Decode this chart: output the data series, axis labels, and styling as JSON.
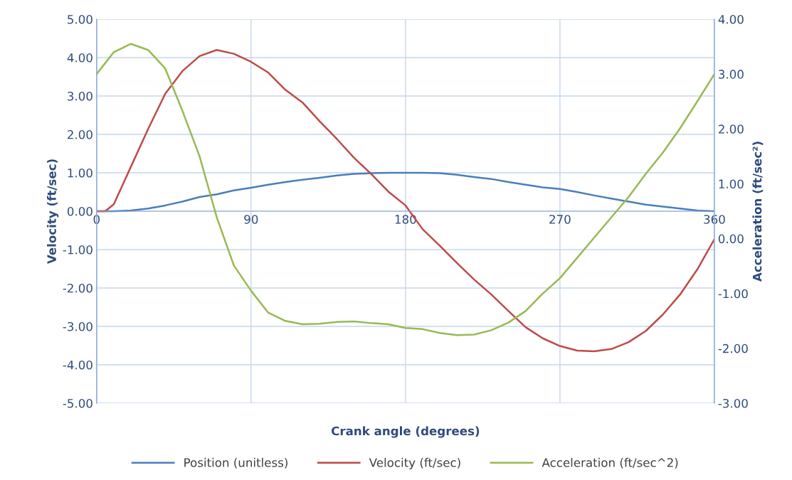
{
  "chart_data": {
    "type": "line",
    "xlabel": "Crank angle (degrees)",
    "ylabel": "Velocity (ft/sec)",
    "y2label": "Acceleration (ft/sec²)",
    "x": [
      0,
      10,
      20,
      30,
      40,
      50,
      60,
      70,
      80,
      90,
      100,
      110,
      120,
      130,
      140,
      150,
      160,
      170,
      180,
      190,
      200,
      210,
      220,
      230,
      240,
      250,
      260,
      270,
      280,
      290,
      300,
      310,
      320,
      330,
      340,
      350,
      360
    ],
    "series": [
      {
        "name": "Position (unitless)",
        "color": "#4a7ebb",
        "values": [
          0,
          0,
          0.02,
          0.07,
          0.15,
          0.25,
          0.37,
          0.44,
          0.54,
          0.61,
          0.69,
          0.76,
          0.82,
          0.87,
          0.93,
          0.97,
          0.99,
          1.0,
          1.0,
          1.0,
          0.99,
          0.95,
          0.89,
          0.84,
          0.76,
          0.69,
          0.62,
          0.58,
          0.5,
          0.41,
          0.33,
          0.25,
          0.17,
          0.12,
          0.07,
          0.02,
          0
        ]
      },
      {
        "name": "Velocity (ft/sec)",
        "color": "#be4b48",
        "x": [
          0,
          5,
          10,
          20,
          30,
          40,
          50,
          60,
          70,
          80,
          90,
          100,
          110,
          120,
          130,
          140,
          150,
          160,
          170,
          180,
          190,
          200,
          210,
          220,
          230,
          240,
          250,
          260,
          270,
          280,
          290,
          300,
          310,
          320,
          330,
          340,
          350,
          360
        ],
        "values": [
          0,
          0,
          0.18,
          1.16,
          2.14,
          3.06,
          3.65,
          4.04,
          4.2,
          4.1,
          3.89,
          3.61,
          3.16,
          2.83,
          2.34,
          1.88,
          1.39,
          0.97,
          0.51,
          0.15,
          -0.47,
          -0.9,
          -1.35,
          -1.78,
          -2.17,
          -2.6,
          -3.02,
          -3.31,
          -3.51,
          -3.63,
          -3.65,
          -3.59,
          -3.41,
          -3.12,
          -2.69,
          -2.17,
          -1.52,
          -0.73
        ]
      },
      {
        "name": "Acceleration (ft/sec^2)",
        "color": "#98b954",
        "axis": "y2",
        "values": [
          3.0,
          3.4,
          3.55,
          3.44,
          3.1,
          2.33,
          1.5,
          0.39,
          -0.49,
          -0.95,
          -1.35,
          -1.5,
          -1.56,
          -1.55,
          -1.52,
          -1.51,
          -1.54,
          -1.56,
          -1.63,
          -1.65,
          -1.72,
          -1.76,
          -1.75,
          -1.67,
          -1.53,
          -1.32,
          -1.0,
          -0.72,
          -0.35,
          0.02,
          0.39,
          0.76,
          1.18,
          1.57,
          2.01,
          2.5,
          3.0
        ]
      }
    ],
    "xlim": [
      0,
      360
    ],
    "xticks": [
      0,
      90,
      180,
      270,
      360
    ],
    "ylim": [
      -5,
      5
    ],
    "yticks": [
      {
        "value": -5,
        "label": "-5.00"
      },
      {
        "value": -4,
        "label": "-4.00"
      },
      {
        "value": -3,
        "label": "-3.00"
      },
      {
        "value": -2,
        "label": "-2.00"
      },
      {
        "value": -1,
        "label": "-1.00"
      },
      {
        "value": 0,
        "label": "0.00"
      },
      {
        "value": 1,
        "label": "1.00"
      },
      {
        "value": 2,
        "label": "2.00"
      },
      {
        "value": 3,
        "label": "3.00"
      },
      {
        "value": 4,
        "label": "4.00"
      },
      {
        "value": 5,
        "label": "5.00"
      }
    ],
    "y2lim": [
      -3,
      4
    ],
    "y2ticks": [
      {
        "value": -3,
        "label": "-3.00"
      },
      {
        "value": -2,
        "label": "-2.00"
      },
      {
        "value": -1,
        "label": "-1.00"
      },
      {
        "value": 0,
        "label": "0.00"
      },
      {
        "value": 1,
        "label": "1.00"
      },
      {
        "value": 2,
        "label": "2.00"
      },
      {
        "value": 3,
        "label": "3.00"
      },
      {
        "value": 4,
        "label": "4.00"
      }
    ],
    "grid": true,
    "legend": "bottom",
    "marker": "none",
    "line_style": "solid"
  }
}
